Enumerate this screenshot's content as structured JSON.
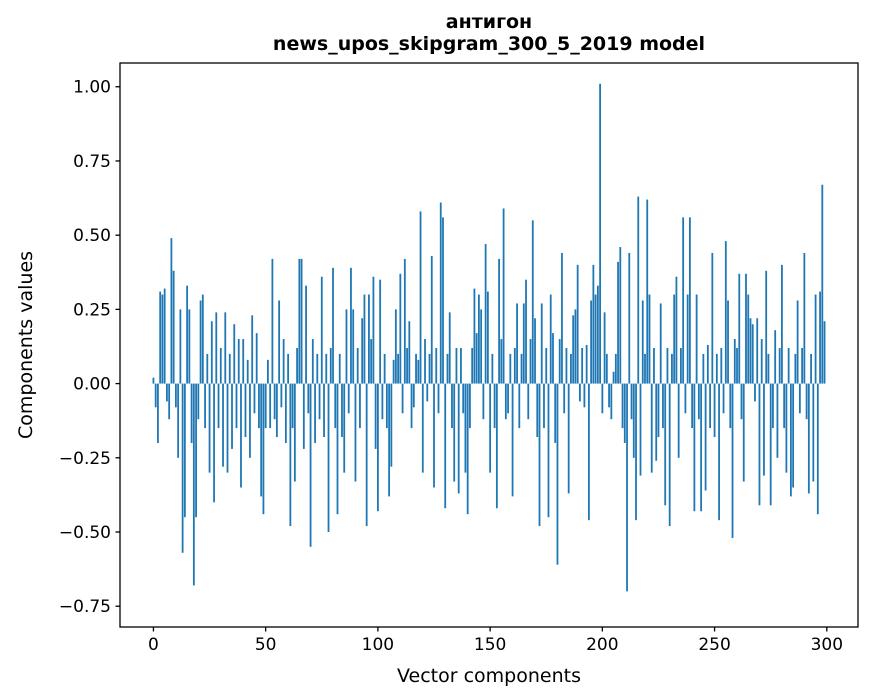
{
  "title": {
    "line1": "антигон",
    "line2": "news_upos_skipgram_300_5_2019 model"
  },
  "chart_data": {
    "type": "bar",
    "title": "антигон — news_upos_skipgram_300_5_2019 model",
    "xlabel": "Vector components",
    "ylabel": "Components values",
    "bar_color": "#1f77b4",
    "spine_color": "#000000",
    "n_components": 300,
    "xlim": [
      -14.9,
      313.9
    ],
    "ylim": [
      -0.82,
      1.08
    ],
    "x_ticks": [
      0,
      50,
      100,
      150,
      200,
      250,
      300
    ],
    "x_tick_labels": [
      "0",
      "50",
      "100",
      "150",
      "200",
      "250",
      "300"
    ],
    "y_ticks": [
      1.0,
      0.75,
      0.5,
      0.25,
      0.0,
      -0.25,
      -0.5,
      -0.75
    ],
    "y_tick_labels": [
      "1.00",
      "0.75",
      "0.50",
      "0.25",
      "0.00",
      "−0.25",
      "−0.50",
      "−0.75"
    ],
    "values": [
      0.02,
      -0.08,
      -0.2,
      0.31,
      0.3,
      0.32,
      -0.06,
      -0.12,
      0.49,
      0.38,
      -0.08,
      -0.25,
      0.25,
      -0.57,
      -0.45,
      0.33,
      0.25,
      -0.2,
      -0.68,
      -0.45,
      -0.12,
      0.28,
      0.3,
      -0.15,
      0.1,
      -0.3,
      0.21,
      -0.4,
      0.24,
      -0.15,
      0.12,
      -0.28,
      0.24,
      -0.3,
      0.1,
      -0.22,
      0.2,
      -0.15,
      0.15,
      -0.35,
      0.15,
      -0.18,
      0.08,
      -0.25,
      0.23,
      -0.1,
      0.17,
      -0.15,
      -0.38,
      -0.44,
      -0.15,
      0.08,
      -0.15,
      0.42,
      -0.12,
      -0.18,
      0.28,
      -0.08,
      0.15,
      -0.2,
      0.1,
      -0.48,
      -0.15,
      -0.33,
      0.12,
      0.42,
      0.42,
      -0.22,
      0.33,
      -0.1,
      -0.55,
      0.15,
      -0.2,
      0.1,
      -0.12,
      0.36,
      -0.18,
      0.1,
      -0.5,
      0.12,
      0.39,
      -0.15,
      -0.44,
      0.1,
      -0.18,
      -0.3,
      0.25,
      -0.1,
      0.39,
      0.25,
      -0.33,
      0.12,
      -0.15,
      0.22,
      0.3,
      -0.48,
      0.3,
      0.15,
      0.36,
      -0.22,
      -0.43,
      0.35,
      -0.12,
      0.1,
      -0.15,
      -0.38,
      -0.28,
      0.08,
      0.25,
      0.1,
      0.37,
      -0.1,
      0.42,
      0.12,
      0.21,
      -0.15,
      -0.08,
      0.1,
      0.08,
      0.58,
      -0.3,
      0.15,
      -0.06,
      0.1,
      0.43,
      -0.35,
      0.12,
      -0.1,
      0.61,
      0.56,
      -0.42,
      0.1,
      0.24,
      -0.15,
      -0.33,
      0.12,
      -0.37,
      0.12,
      -0.1,
      -0.3,
      -0.44,
      -0.15,
      0.12,
      0.32,
      0.17,
      0.3,
      0.25,
      -0.12,
      0.47,
      0.31,
      -0.3,
      0.1,
      -0.15,
      -0.42,
      0.42,
      0.15,
      0.59,
      -0.12,
      -0.1,
      0.1,
      -0.38,
      0.12,
      0.27,
      -0.15,
      0.1,
      0.27,
      0.35,
      -0.12,
      0.15,
      0.55,
      0.22,
      -0.18,
      -0.48,
      0.27,
      -0.15,
      0.12,
      -0.45,
      0.3,
      0.17,
      -0.2,
      -0.61,
      0.15,
      0.44,
      -0.1,
      0.12,
      -0.37,
      0.1,
      0.23,
      0.25,
      0.4,
      -0.06,
      0.12,
      -0.08,
      0.13,
      -0.46,
      0.28,
      0.4,
      0.3,
      0.33,
      1.01,
      -0.1,
      0.24,
      0.1,
      -0.08,
      -0.12,
      0.04,
      0.1,
      0.41,
      0.46,
      -0.15,
      -0.2,
      -0.7,
      0.44,
      -0.12,
      -0.25,
      -0.46,
      0.63,
      -0.31,
      0.28,
      0.1,
      0.62,
      0.3,
      -0.3,
      0.12,
      -0.26,
      -0.18,
      0.27,
      -0.15,
      -0.41,
      0.12,
      -0.48,
      0.1,
      0.3,
      0.36,
      -0.25,
      0.12,
      0.56,
      -0.1,
      0.3,
      0.56,
      -0.15,
      -0.43,
      0.3,
      -0.12,
      -0.43,
      0.1,
      -0.36,
      0.13,
      -0.15,
      0.44,
      -0.18,
      0.1,
      -0.46,
      0.12,
      -0.1,
      0.48,
      0.28,
      -0.15,
      -0.52,
      0.15,
      0.12,
      0.37,
      -0.12,
      -0.33,
      0.37,
      0.3,
      0.22,
      0.2,
      -0.06,
      0.22,
      -0.41,
      0.15,
      -0.31,
      0.38,
      0.1,
      -0.41,
      -0.15,
      0.18,
      -0.25,
      0.12,
      0.4,
      -0.15,
      -0.3,
      0.12,
      -0.38,
      -0.35,
      0.1,
      0.28,
      -0.1,
      0.12,
      0.44,
      -0.12,
      -0.37,
      0.1,
      -0.33,
      0.3,
      -0.44,
      0.31,
      0.67,
      0.21
    ]
  }
}
